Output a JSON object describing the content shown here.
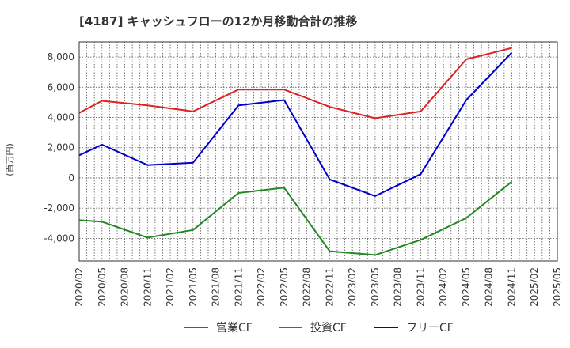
{
  "chart_data": {
    "type": "line",
    "title": "[4187]  キャッシュフローの12か月移動合計の推移",
    "xlabel": "",
    "ylabel": "(百万円)",
    "ylim": [
      -5500,
      9000
    ],
    "yticks": [
      -4000,
      -2000,
      0,
      2000,
      4000,
      6000,
      8000
    ],
    "ytick_labels": [
      "-4,000",
      "-2,000",
      "0",
      "2,000",
      "4,000",
      "6,000",
      "8,000"
    ],
    "grid": true,
    "legend_position": "bottom",
    "categories": [
      "2020/02",
      "2020/05",
      "2020/08",
      "2020/11",
      "2021/02",
      "2021/05",
      "2021/08",
      "2021/11",
      "2022/02",
      "2022/05",
      "2022/08",
      "2022/11",
      "2023/02",
      "2023/05",
      "2023/08",
      "2023/11",
      "2024/02",
      "2024/05",
      "2024/08",
      "2024/11",
      "2025/02",
      "2025/05"
    ],
    "series": [
      {
        "name": "営業CF",
        "color": "#dd2222",
        "points": [
          [
            0,
            4300
          ],
          [
            1,
            5100
          ],
          [
            3,
            4800
          ],
          [
            5,
            4400
          ],
          [
            7,
            5850
          ],
          [
            9,
            5850
          ],
          [
            11,
            4700
          ],
          [
            13,
            3950
          ],
          [
            15,
            4400
          ],
          [
            17,
            7850
          ],
          [
            19,
            8600
          ]
        ]
      },
      {
        "name": "投資CF",
        "color": "#228822",
        "points": [
          [
            0,
            -2800
          ],
          [
            1,
            -2900
          ],
          [
            3,
            -3950
          ],
          [
            5,
            -3450
          ],
          [
            7,
            -1000
          ],
          [
            9,
            -650
          ],
          [
            11,
            -4850
          ],
          [
            13,
            -5100
          ],
          [
            15,
            -4100
          ],
          [
            17,
            -2650
          ],
          [
            19,
            -250
          ]
        ]
      },
      {
        "name": "フリーCF",
        "color": "#0000cc",
        "points": [
          [
            0,
            1500
          ],
          [
            1,
            2200
          ],
          [
            3,
            850
          ],
          [
            5,
            1000
          ],
          [
            7,
            4800
          ],
          [
            9,
            5150
          ],
          [
            11,
            -100
          ],
          [
            13,
            -1200
          ],
          [
            15,
            250
          ],
          [
            17,
            5150
          ],
          [
            19,
            8300
          ]
        ]
      }
    ]
  }
}
